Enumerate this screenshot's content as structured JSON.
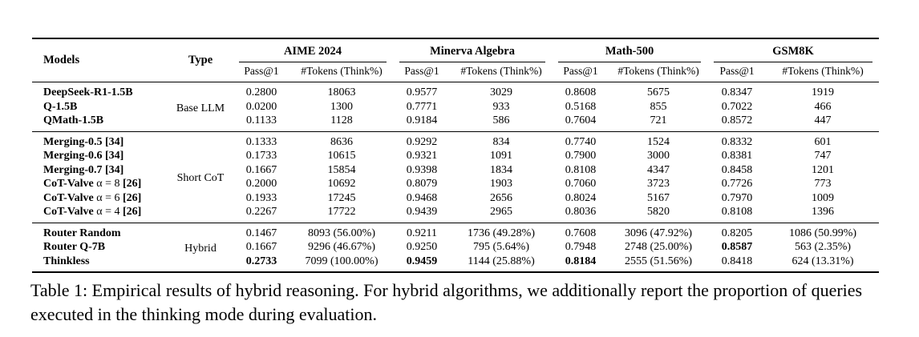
{
  "table": {
    "header": {
      "models": "Models",
      "type": "Type",
      "groups": [
        {
          "label": "AIME 2024"
        },
        {
          "label": "Minerva Algebra"
        },
        {
          "label": "Math-500"
        },
        {
          "label": "GSM8K"
        }
      ],
      "subheaders": [
        "Pass@1",
        "#Tokens (Think%)"
      ]
    },
    "blocks": [
      {
        "type_label": "Base LLM",
        "rows": [
          {
            "name": "DeepSeek-R1-1.5B",
            "math": "",
            "ref": "",
            "values": [
              "0.2800",
              "18063",
              "0.9577",
              "3029",
              "0.8608",
              "5675",
              "0.8347",
              "1919"
            ],
            "bold": []
          },
          {
            "name": "Q-1.5B",
            "math": "",
            "ref": "",
            "values": [
              "0.0200",
              "1300",
              "0.7771",
              "933",
              "0.5168",
              "855",
              "0.7022",
              "466"
            ],
            "bold": []
          },
          {
            "name": "QMath-1.5B",
            "math": "",
            "ref": "",
            "values": [
              "0.1133",
              "1128",
              "0.9184",
              "586",
              "0.7604",
              "721",
              "0.8572",
              "447"
            ],
            "bold": []
          }
        ]
      },
      {
        "type_label": "Short CoT",
        "rows": [
          {
            "name": "Merging-0.5",
            "math": "",
            "ref": " [34]",
            "values": [
              "0.1333",
              "8636",
              "0.9292",
              "834",
              "0.7740",
              "1524",
              "0.8332",
              "601"
            ],
            "bold": []
          },
          {
            "name": "Merging-0.6",
            "math": "",
            "ref": " [34]",
            "values": [
              "0.1733",
              "10615",
              "0.9321",
              "1091",
              "0.7900",
              "3000",
              "0.8381",
              "747"
            ],
            "bold": []
          },
          {
            "name": "Merging-0.7",
            "math": "",
            "ref": " [34]",
            "values": [
              "0.1667",
              "15854",
              "0.9398",
              "1834",
              "0.8108",
              "4347",
              "0.8458",
              "1201"
            ],
            "bold": []
          },
          {
            "name": "CoT-Valve",
            "math": " α = 8",
            "ref": " [26]",
            "values": [
              "0.2000",
              "10692",
              "0.8079",
              "1903",
              "0.7060",
              "3723",
              "0.7726",
              "773"
            ],
            "bold": []
          },
          {
            "name": "CoT-Valve",
            "math": " α = 6",
            "ref": " [26]",
            "values": [
              "0.1933",
              "17245",
              "0.9468",
              "2656",
              "0.8024",
              "5167",
              "0.7970",
              "1009"
            ],
            "bold": []
          },
          {
            "name": "CoT-Valve",
            "math": " α = 4",
            "ref": " [26]",
            "values": [
              "0.2267",
              "17722",
              "0.9439",
              "2965",
              "0.8036",
              "5820",
              "0.8108",
              "1396"
            ],
            "bold": []
          }
        ]
      },
      {
        "type_label": "Hybrid",
        "rows": [
          {
            "name": "Router Random",
            "math": "",
            "ref": "",
            "values": [
              "0.1467",
              "8093 (56.00%)",
              "0.9211",
              "1736 (49.28%)",
              "0.7608",
              "3096 (47.92%)",
              "0.8205",
              "1086 (50.99%)"
            ],
            "bold": []
          },
          {
            "name": "Router Q-7B",
            "math": "",
            "ref": "",
            "values": [
              "0.1667",
              "9296 (46.67%)",
              "0.9250",
              "795 (5.64%)",
              "0.7948",
              "2748 (25.00%)",
              "0.8587",
              "563 (2.35%)"
            ],
            "bold": [
              6
            ]
          },
          {
            "name": "Thinkless",
            "math": "",
            "ref": "",
            "values": [
              "0.2733",
              "7099 (100.00%)",
              "0.9459",
              "1144 (25.88%)",
              "0.8184",
              "2555 (51.56%)",
              "0.8418",
              "624 (13.31%)"
            ],
            "bold": [
              0,
              2,
              4
            ]
          }
        ]
      }
    ]
  },
  "caption": {
    "text": "Table 1: Empirical results of hybrid reasoning. For hybrid algorithms, we additionally report the proportion of queries executed in the thinking mode during evaluation."
  }
}
